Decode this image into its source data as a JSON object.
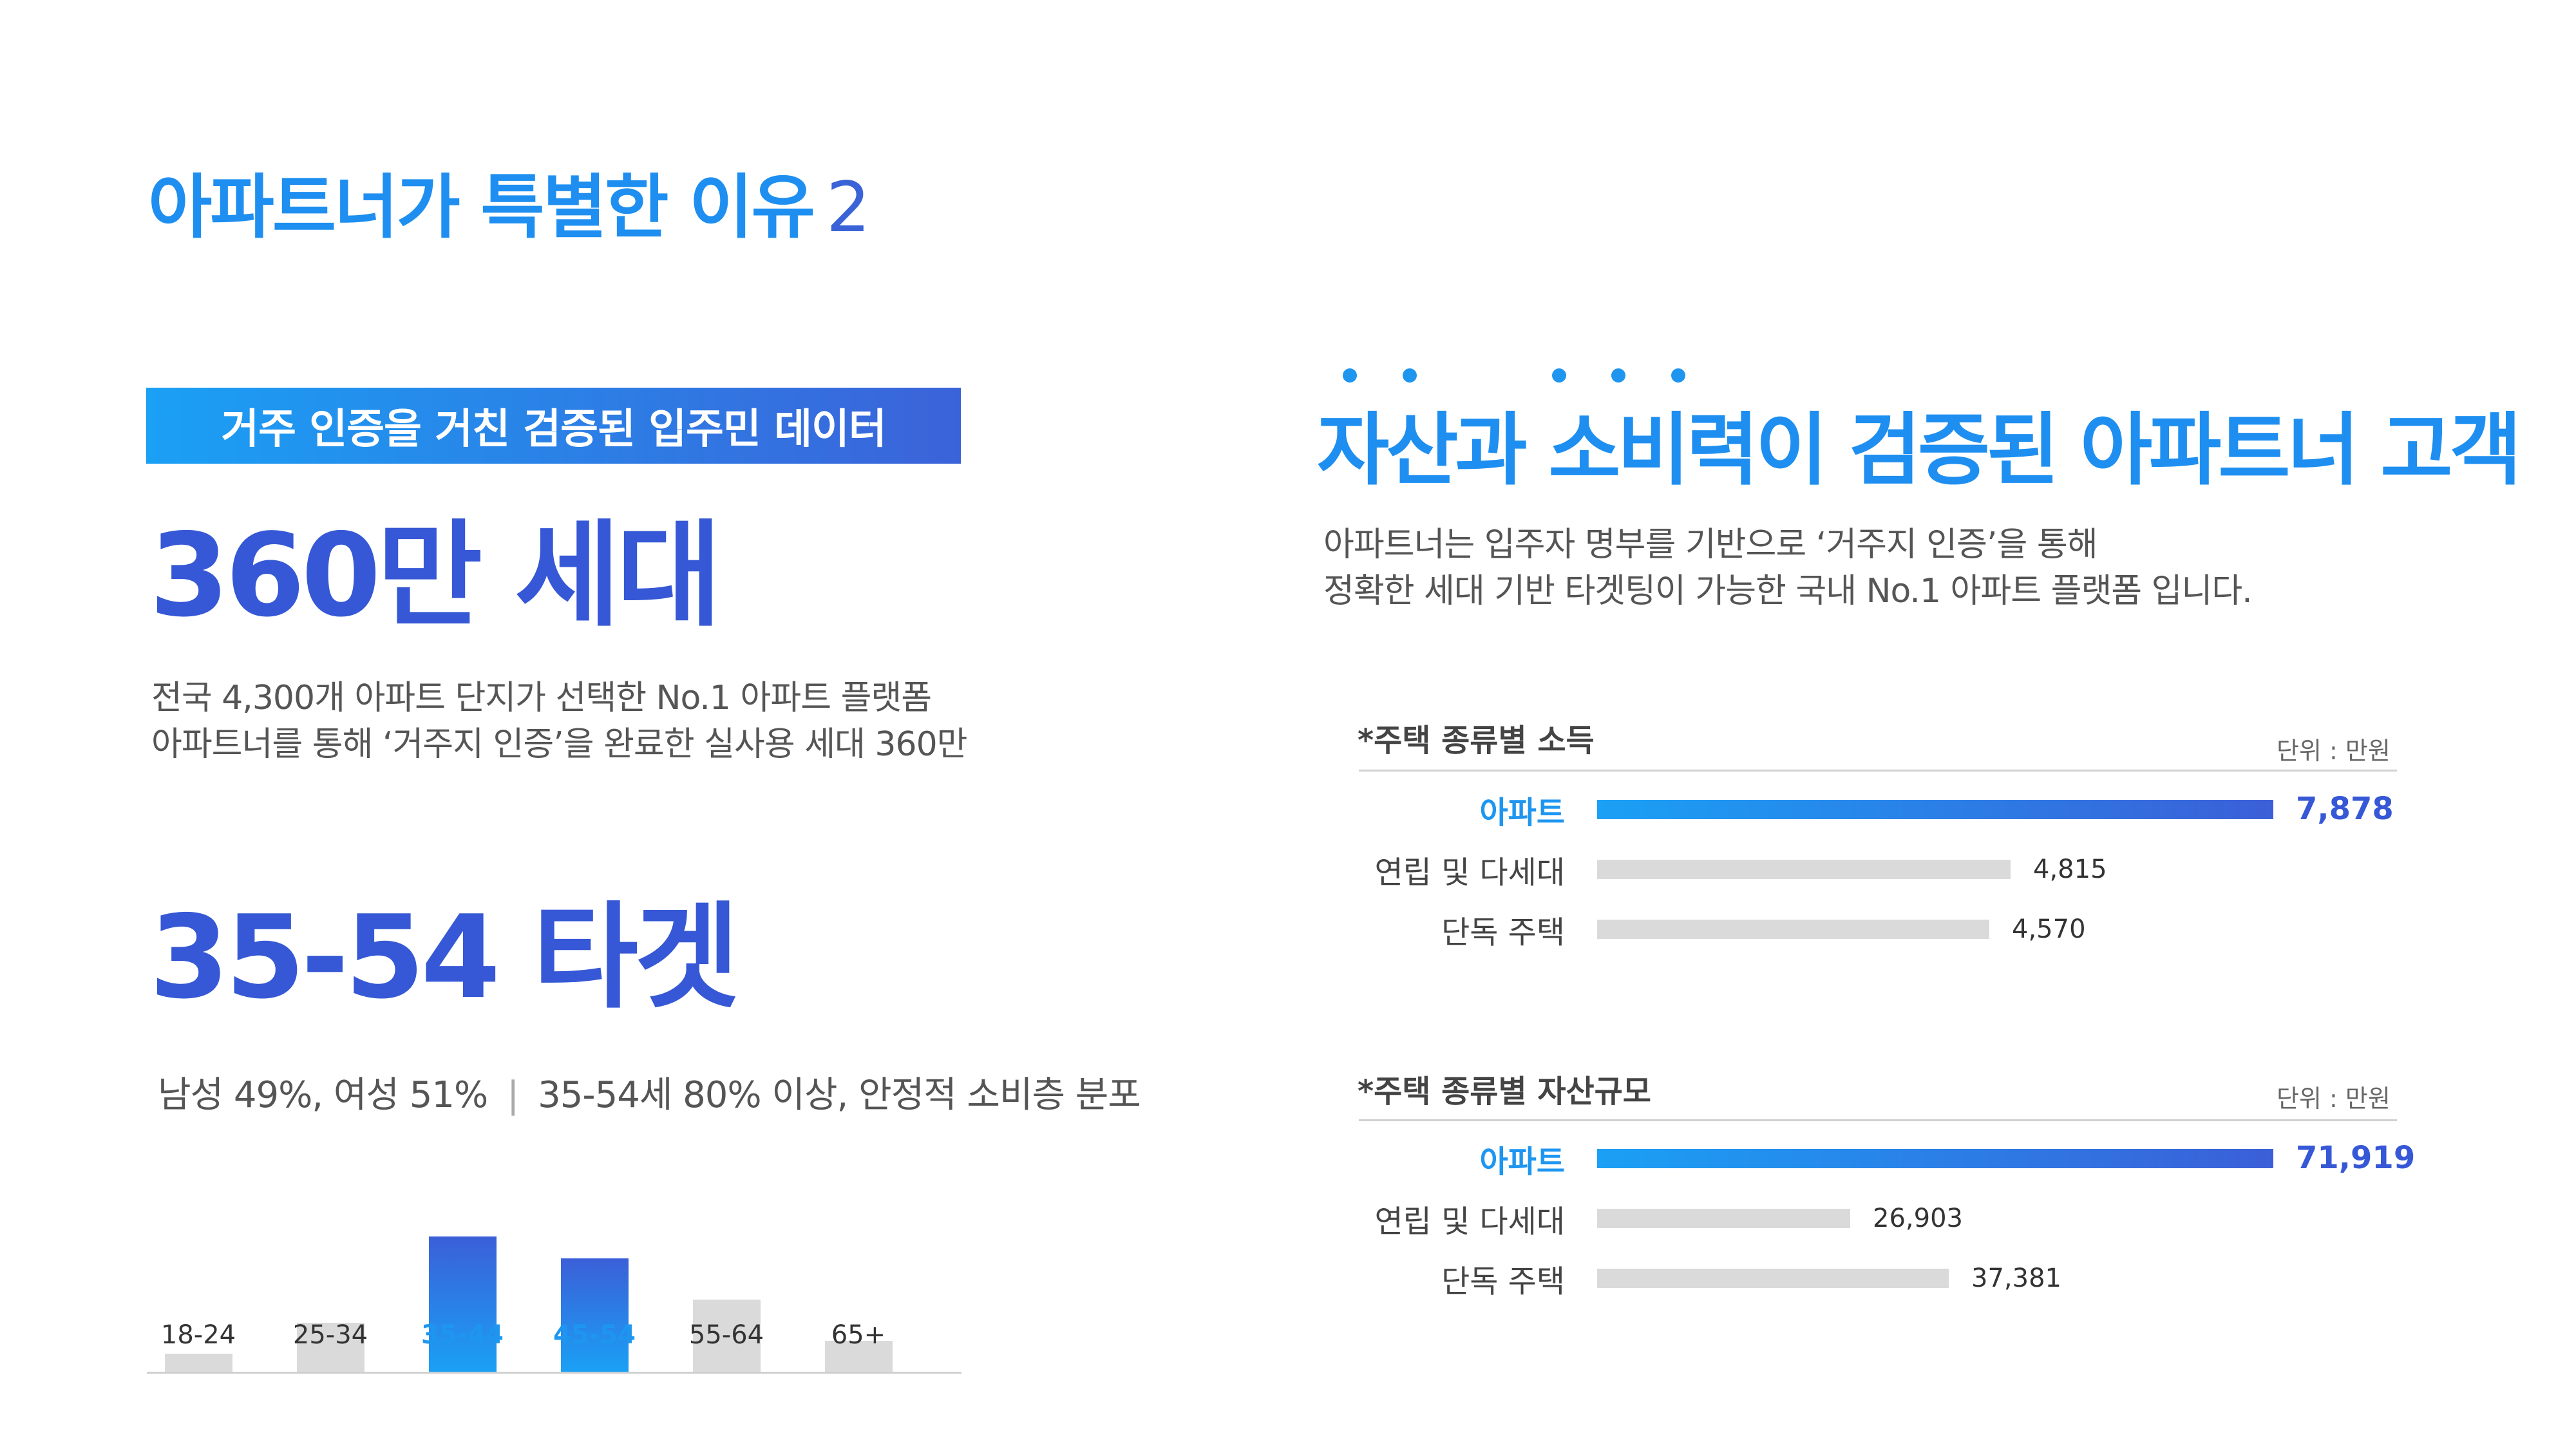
{
  "page": {
    "title": "아파트너가 특별한 이유",
    "title_number": "2"
  },
  "left": {
    "banner": "거주 인증을 거친  검증된 입주민 데이터",
    "households_stat": "360만 세대",
    "households_desc_1": "전국 4,300개 아파트 단지가 선택한 No.1 아파트 플랫폼",
    "households_desc_2": "아파트너를 통해 ‘거주지 인증’을 완료한 실사용 세대 360만",
    "target_stat": "35-54 타겟",
    "gender_text": "남성 49%, 여성 51%",
    "separator": "|",
    "age_text": "35-54세  80% 이상, 안정적 소비층 분포"
  },
  "right": {
    "title": "자산과 소비력이 검증된  아파트너 고객",
    "desc_1": "아파트너는 입주자 명부를 기반으로 ‘거주지 인증’을 통해",
    "desc_2": "정확한 세대 기반 타겟팅이 가능한 국내 No.1 아파트 플랫폼 입니다.",
    "income_title": "*주택 종류별 소득",
    "asset_title": "*주택 종류별 자산규모",
    "unit_label": "단위 : 만원"
  },
  "colors": {
    "accent_blue": "#1e8ff0",
    "deep_blue": "#3658d6",
    "bar_gray": "#dadada"
  },
  "chart_data": [
    {
      "type": "bar",
      "categories": [
        "18-24",
        "25-34",
        "35-44",
        "45-54",
        "55-64",
        "65+"
      ],
      "values": [
        10,
        27,
        75,
        63,
        40,
        17
      ],
      "highlight": [
        "35-44",
        "45-54"
      ],
      "grid": false
    },
    {
      "type": "bar",
      "orientation": "horizontal",
      "title": "*주택 종류별 소득",
      "unit": "단위 : 만원",
      "categories": [
        "아파트",
        "연립 및 다세대",
        "단독 주택"
      ],
      "values": [
        7878,
        4815,
        4570
      ],
      "value_labels": [
        "7,878",
        "4,815",
        "4,570"
      ],
      "highlight": [
        "아파트"
      ]
    },
    {
      "type": "bar",
      "orientation": "horizontal",
      "title": "*주택 종류별 자산규모",
      "unit": "단위 : 만원",
      "categories": [
        "아파트",
        "연립 및 다세대",
        "단독 주택"
      ],
      "values": [
        71919,
        26903,
        37381
      ],
      "value_labels": [
        "71,919",
        "26,903",
        "37,381"
      ],
      "highlight": [
        "아파트"
      ]
    }
  ]
}
